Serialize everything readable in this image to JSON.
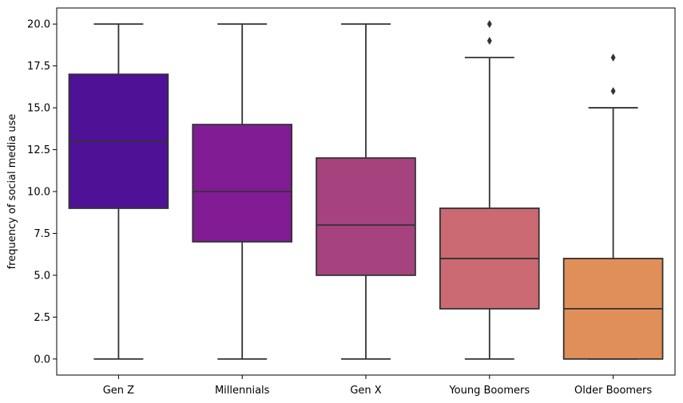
{
  "chart_data": {
    "type": "box",
    "title": "",
    "xlabel": "",
    "ylabel": "frequency of social media use",
    "ylim": [
      -0.96,
      20.96
    ],
    "yticks": [
      0.0,
      2.5,
      5.0,
      7.5,
      10.0,
      12.5,
      15.0,
      17.5,
      20.0
    ],
    "ytick_labels": [
      "0.0",
      "2.5",
      "5.0",
      "7.5",
      "10.0",
      "12.5",
      "15.0",
      "17.5",
      "20.0"
    ],
    "categories": [
      "Gen Z",
      "Millennials",
      "Gen X",
      "Young Boomers",
      "Older Boomers"
    ],
    "boxes": [
      {
        "category": "Gen Z",
        "whisker_low": 0,
        "q1": 9,
        "median": 13,
        "q3": 17,
        "whisker_high": 20,
        "outliers": [],
        "color": "#4f1196"
      },
      {
        "category": "Millennials",
        "whisker_low": 0,
        "q1": 7,
        "median": 10,
        "q3": 14,
        "whisker_high": 20,
        "outliers": [],
        "color": "#811c94"
      },
      {
        "category": "Gen X",
        "whisker_low": 0,
        "q1": 5,
        "median": 8,
        "q3": 12,
        "whisker_high": 20,
        "outliers": [],
        "color": "#a6437f"
      },
      {
        "category": "Young Boomers",
        "whisker_low": 0,
        "q1": 3,
        "median": 6,
        "q3": 9,
        "whisker_high": 18,
        "outliers": [
          19,
          20
        ],
        "color": "#cb6a72"
      },
      {
        "category": "Older Boomers",
        "whisker_low": 0,
        "q1": 0,
        "median": 3,
        "q3": 6,
        "whisker_high": 15,
        "outliers": [
          16,
          18
        ],
        "color": "#e08f58"
      }
    ],
    "grid": false,
    "legend": "none"
  }
}
